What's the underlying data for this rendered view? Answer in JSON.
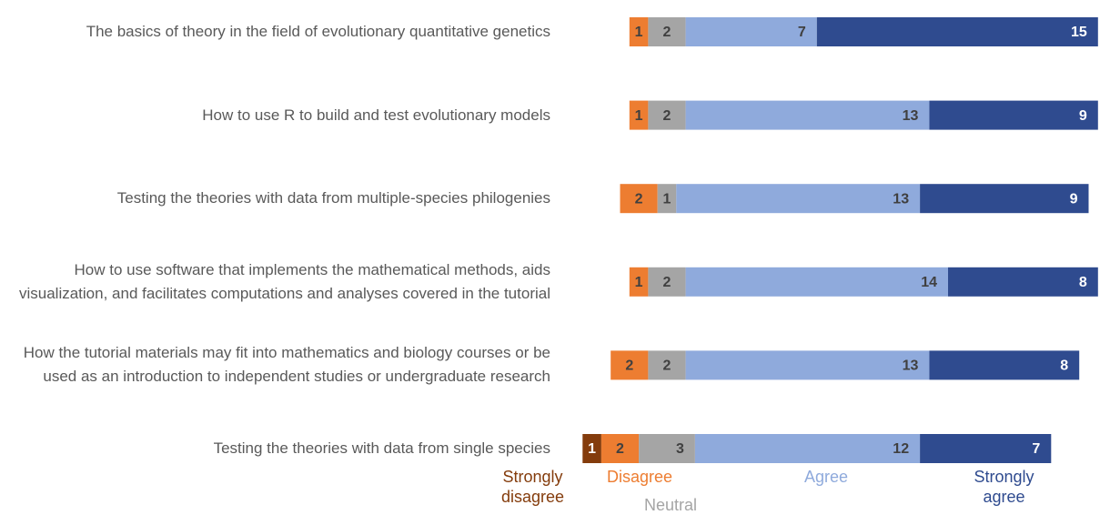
{
  "chart_data": {
    "type": "diverging-bar",
    "categories": [
      "The basics of theory in the field of evolutionary quantitative genetics",
      "How to use R to build and test evolutionary models",
      "Testing the theories with data from multiple-species philogenies",
      "How to use software that implements the mathematical methods, aids visualization, and facilitates computations and analyses covered in the tutorial",
      "How the tutorial materials may fit into mathematics and biology courses or be used as an introduction to independent studies or undergraduate research",
      "Testing the theories with data from single species"
    ],
    "series": [
      {
        "name": "Strongly disagree",
        "color": "#843c0c",
        "values": [
          0,
          0,
          0,
          0,
          0,
          1
        ]
      },
      {
        "name": "Disagree",
        "color": "#ed7d31",
        "values": [
          1,
          1,
          2,
          1,
          2,
          2
        ]
      },
      {
        "name": "Neutral",
        "color": "#a5a5a5",
        "values": [
          2,
          2,
          1,
          2,
          2,
          3
        ]
      },
      {
        "name": "Agree",
        "color": "#8faadc",
        "values": [
          7,
          13,
          13,
          14,
          13,
          12
        ]
      },
      {
        "name": "Strongly agree",
        "color": "#2f4b8f",
        "values": [
          15,
          9,
          9,
          8,
          8,
          7
        ]
      }
    ]
  }
}
